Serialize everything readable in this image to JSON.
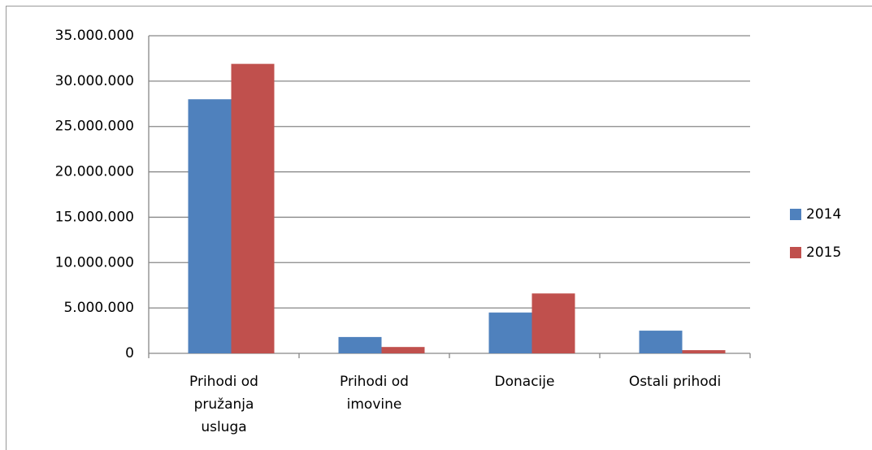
{
  "chart_data": {
    "type": "bar",
    "categories": [
      "Prihodi od pružanja usluga",
      "Prihodi od imovine",
      "Donacije",
      "Ostali prihodi"
    ],
    "series": [
      {
        "name": "2014",
        "color": "#4f81bd",
        "values": [
          28000000,
          1800000,
          4500000,
          2500000
        ]
      },
      {
        "name": "2015",
        "color": "#c0504d",
        "values": [
          31900000,
          700000,
          6600000,
          350000
        ]
      }
    ],
    "ylim": [
      0,
      35000000
    ],
    "yticks": [
      0,
      {
        "value": 5000000,
        "label": "5.000.000"
      },
      {
        "value": 10000000,
        "label": "10.000.000"
      },
      {
        "value": 15000000,
        "label": "15.000.000"
      },
      {
        "value": 20000000,
        "label": "20.000.000"
      },
      {
        "value": 25000000,
        "label": "25.000.000"
      },
      {
        "value": 30000000,
        "label": "30.000.000"
      },
      {
        "value": 35000000,
        "label": "35.000.000"
      }
    ],
    "grid": true,
    "legend": "right"
  }
}
